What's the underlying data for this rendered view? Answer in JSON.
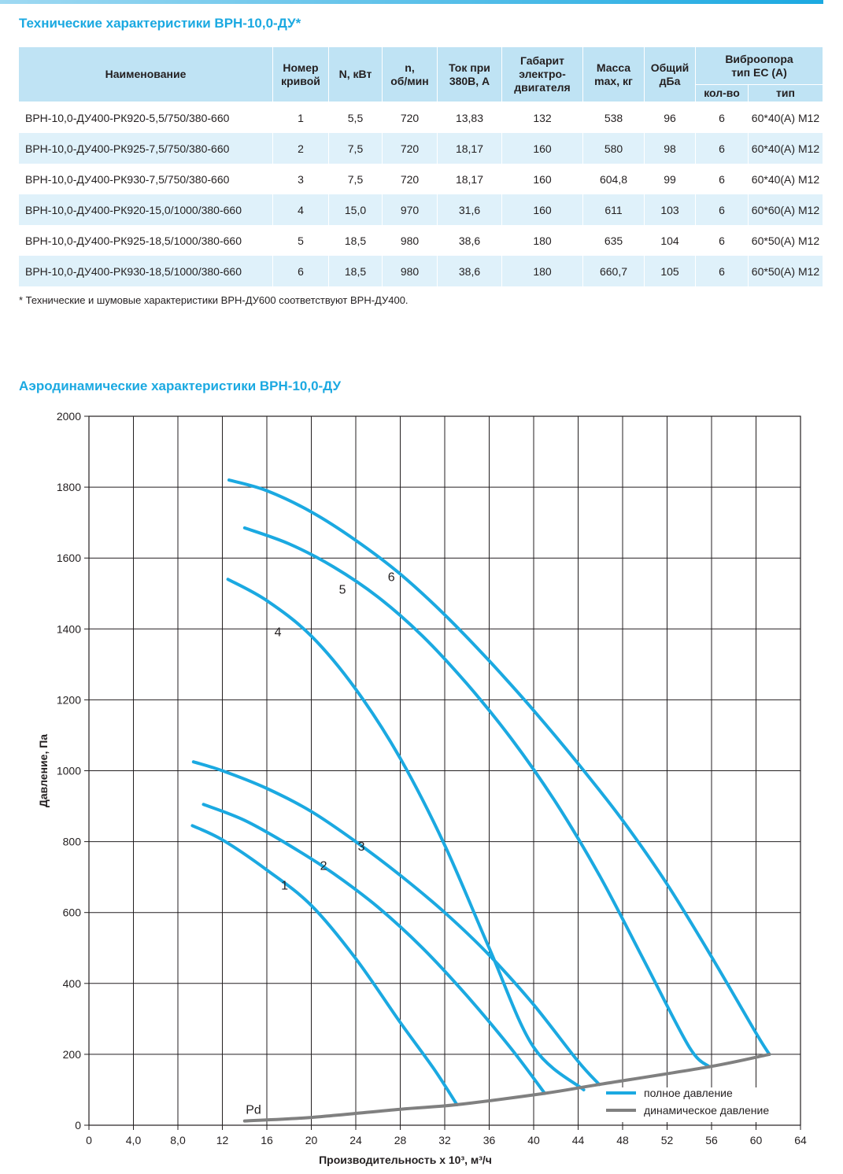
{
  "tech_title": "Технические характеристики ВРН-10,0-ДУ*",
  "table": {
    "headers": {
      "name": "Наименование",
      "curve": [
        "Номер",
        "кривой"
      ],
      "power": "N, кВт",
      "rpm": [
        "n,",
        "об/мин"
      ],
      "current": [
        "Ток при",
        "380В, А"
      ],
      "motor": [
        "Габарит",
        "электро-",
        "двигателя"
      ],
      "mass": [
        "Масса",
        "max, кг"
      ],
      "noise": [
        "Общий",
        "дБа"
      ],
      "vibro": [
        "Виброопора",
        "тип ЕС (А)"
      ],
      "vibro_qty": "кол-во",
      "vibro_type": "тип"
    },
    "rows": [
      [
        "ВРН-10,0-ДУ400-РК920-5,5/750/380-660",
        "1",
        "5,5",
        "720",
        "13,83",
        "132",
        "538",
        "96",
        "6",
        "60*40(А) М12"
      ],
      [
        "ВРН-10,0-ДУ400-РК925-7,5/750/380-660",
        "2",
        "7,5",
        "720",
        "18,17",
        "160",
        "580",
        "98",
        "6",
        "60*40(А) М12"
      ],
      [
        "ВРН-10,0-ДУ400-РК930-7,5/750/380-660",
        "3",
        "7,5",
        "720",
        "18,17",
        "160",
        "604,8",
        "99",
        "6",
        "60*40(А) М12"
      ],
      [
        "ВРН-10,0-ДУ400-РК920-15,0/1000/380-660",
        "4",
        "15,0",
        "970",
        "31,6",
        "160",
        "611",
        "103",
        "6",
        "60*60(А) М12"
      ],
      [
        "ВРН-10,0-ДУ400-РК925-18,5/1000/380-660",
        "5",
        "18,5",
        "980",
        "38,6",
        "180",
        "635",
        "104",
        "6",
        "60*50(А) М12"
      ],
      [
        "ВРН-10,0-ДУ400-РК930-18,5/1000/380-660",
        "6",
        "18,5",
        "980",
        "38,6",
        "180",
        "660,7",
        "105",
        "6",
        "60*50(А) М12"
      ]
    ]
  },
  "footnote": "* Технические и шумовые характеристики ВРН-ДУ600 соответствуют ВРН-ДУ400.",
  "chart_title": "Аэродинамические характеристики ВРН-10,0-ДУ",
  "colors": {
    "accent": "#1ba9e1",
    "header_bg": "#bfe3f4",
    "row_shade": "#dff1fa",
    "full_pressure": "#1ba9e1",
    "dynamic_pressure": "#808080"
  },
  "chart_data": {
    "type": "line",
    "title": "Аэродинамические характеристики ВРН-10,0-ДУ",
    "xlabel": "Производительность х 10³, м³/ч",
    "ylabel": "Давление, Па",
    "xlim": [
      0,
      64
    ],
    "ylim": [
      0,
      2000
    ],
    "xticks": [
      0,
      4,
      8,
      12,
      16,
      20,
      24,
      28,
      32,
      36,
      40,
      44,
      48,
      52,
      56,
      60,
      64
    ],
    "xtick_labels": [
      "0",
      "4,0",
      "8,0",
      "12",
      "16",
      "20",
      "24",
      "28",
      "32",
      "36",
      "40",
      "44",
      "48",
      "52",
      "56",
      "60",
      "64"
    ],
    "yticks": [
      0,
      200,
      400,
      600,
      800,
      1000,
      1200,
      1400,
      1600,
      1800,
      2000
    ],
    "grid": true,
    "legend": {
      "position": "bottom-right",
      "entries": [
        "полное давление",
        "динамическое давление"
      ]
    },
    "series": [
      {
        "name": "1",
        "kind": "полное давление",
        "label_at": [
          17.6,
          665
        ],
        "x": [
          9.3,
          12,
          16,
          20,
          24,
          28,
          31,
          33.1
        ],
        "y": [
          845,
          805,
          720,
          620,
          470,
          290,
          160,
          58
        ]
      },
      {
        "name": "2",
        "kind": "полное давление",
        "label_at": [
          21.1,
          720
        ],
        "x": [
          10.3,
          14,
          18,
          22,
          26,
          30,
          34,
          38,
          41.0
        ],
        "y": [
          905,
          860,
          790,
          710,
          615,
          500,
          365,
          215,
          90
        ]
      },
      {
        "name": "3",
        "kind": "полное давление",
        "label_at": [
          24.5,
          775
        ],
        "x": [
          9.4,
          12,
          16,
          20,
          24,
          28,
          32,
          36,
          40,
          44,
          45.9
        ],
        "y": [
          1025,
          1000,
          950,
          885,
          800,
          705,
          600,
          480,
          340,
          180,
          115
        ]
      },
      {
        "name": "4",
        "kind": "полное давление",
        "label_at": [
          17.0,
          1380
        ],
        "x": [
          12.5,
          16,
          20,
          24,
          28,
          32,
          36,
          40,
          44.5
        ],
        "y": [
          1540,
          1480,
          1380,
          1230,
          1035,
          790,
          500,
          220,
          100
        ]
      },
      {
        "name": "5",
        "kind": "полное давление",
        "label_at": [
          22.8,
          1500
        ],
        "x": [
          14.0,
          18,
          22,
          26,
          30,
          34,
          38,
          42,
          46,
          50,
          54,
          55.8
        ],
        "y": [
          1685,
          1640,
          1575,
          1490,
          1380,
          1245,
          1090,
          910,
          700,
          460,
          220,
          165
        ]
      },
      {
        "name": "6",
        "kind": "полное давление",
        "label_at": [
          27.2,
          1535
        ],
        "x": [
          12.6,
          16,
          20,
          24,
          28,
          32,
          36,
          40,
          44,
          48,
          52,
          56,
          60,
          61.2
        ],
        "y": [
          1820,
          1790,
          1730,
          1650,
          1555,
          1440,
          1310,
          1170,
          1020,
          860,
          680,
          475,
          260,
          200
        ]
      },
      {
        "name": "Pd",
        "kind": "динамическое давление",
        "label_at": [
          14.8,
          32
        ],
        "x": [
          14.0,
          20,
          28,
          33.1,
          41.0,
          45.9,
          55.8,
          61.2
        ],
        "y": [
          12,
          22,
          45,
          58,
          90,
          115,
          165,
          200
        ]
      }
    ]
  }
}
